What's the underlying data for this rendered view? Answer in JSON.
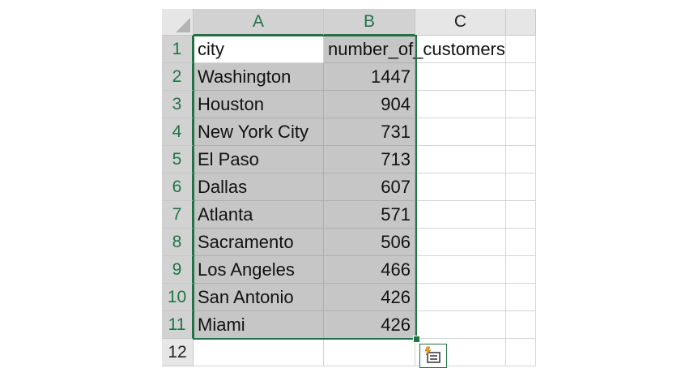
{
  "columns": [
    "A",
    "B",
    "C"
  ],
  "rows": [
    "1",
    "2",
    "3",
    "4",
    "5",
    "6",
    "7",
    "8",
    "9",
    "10",
    "11",
    "12"
  ],
  "header_row": {
    "city": "city",
    "number": "number_of_customers"
  },
  "data_rows": [
    {
      "city": "Washington",
      "value": "1447"
    },
    {
      "city": "Houston",
      "value": "904"
    },
    {
      "city": "New York City",
      "value": "731"
    },
    {
      "city": "El Paso",
      "value": "713"
    },
    {
      "city": "Dallas",
      "value": "607"
    },
    {
      "city": "Atlanta",
      "value": "571"
    },
    {
      "city": "Sacramento",
      "value": "506"
    },
    {
      "city": "Los Angeles",
      "value": "466"
    },
    {
      "city": "San Antonio",
      "value": "426"
    },
    {
      "city": "Miami",
      "value": "426"
    }
  ],
  "colors": {
    "accent": "#217346",
    "selection_fill": "#c6c6c6",
    "header_bg": "#e6e6e6"
  },
  "icons": {
    "quick_analysis": "quick-analysis-icon",
    "select_all": "select-all-icon"
  }
}
